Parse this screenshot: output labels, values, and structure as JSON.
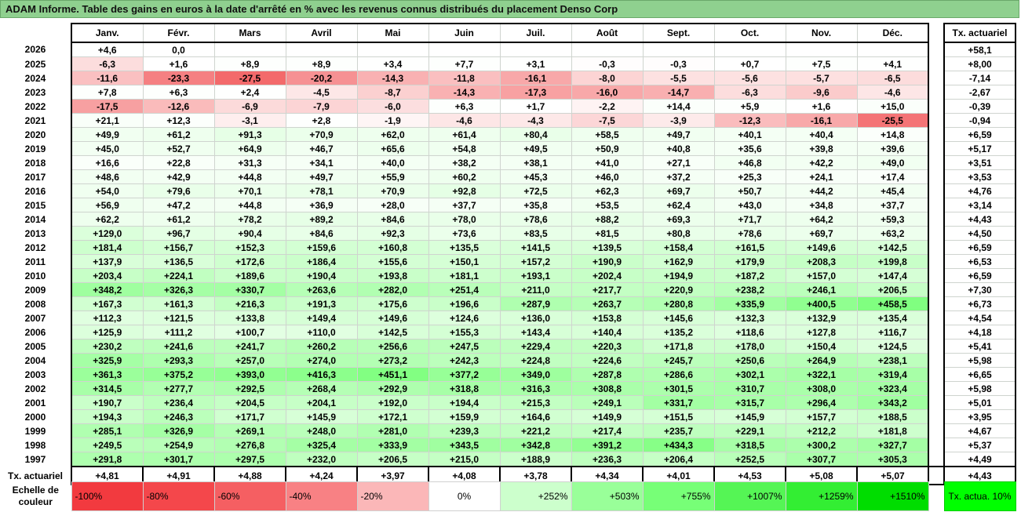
{
  "title": "ADAM Informe. Table des gains en euros à la date d'arrêté en % avec les revenus connus distribués du placement Denso Corp",
  "months": [
    "Janv.",
    "Févr.",
    "Mars",
    "Avril",
    "Mai",
    "Juin",
    "Juil.",
    "Août",
    "Sept.",
    "Oct.",
    "Nov.",
    "Déc."
  ],
  "actuarial_header": "Tx. actuariel",
  "rows": [
    {
      "year": "2026",
      "values": [
        "+4,6",
        "0,0",
        "",
        "",
        "",
        "",
        "",
        "",
        "",
        "",
        "",
        ""
      ],
      "actuarial": "+58,1"
    },
    {
      "year": "2025",
      "values": [
        "-6,3",
        "+1,6",
        "+8,9",
        "+8,9",
        "+3,4",
        "+7,7",
        "+3,1",
        "-0,3",
        "-0,3",
        "+0,7",
        "+7,5",
        "+4,1"
      ],
      "actuarial": "+8,00"
    },
    {
      "year": "2024",
      "values": [
        "-11,6",
        "-23,3",
        "-27,5",
        "-20,2",
        "-14,3",
        "-11,8",
        "-16,1",
        "-8,0",
        "-5,5",
        "-5,6",
        "-5,7",
        "-6,5"
      ],
      "actuarial": "-7,14"
    },
    {
      "year": "2023",
      "values": [
        "+7,8",
        "+6,3",
        "+2,4",
        "-4,5",
        "-8,7",
        "-14,3",
        "-17,3",
        "-16,0",
        "-14,7",
        "-6,3",
        "-9,6",
        "-4,6"
      ],
      "actuarial": "-2,67"
    },
    {
      "year": "2022",
      "values": [
        "-17,5",
        "-12,6",
        "-6,9",
        "-7,9",
        "-6,0",
        "+6,3",
        "+1,7",
        "-2,2",
        "+14,4",
        "+5,9",
        "+1,6",
        "+15,0"
      ],
      "actuarial": "-0,39"
    },
    {
      "year": "2021",
      "values": [
        "+21,1",
        "+12,3",
        "-3,1",
        "+2,8",
        "-1,9",
        "-4,6",
        "-4,3",
        "-7,5",
        "-3,9",
        "-12,3",
        "-16,1",
        "-25,5"
      ],
      "actuarial": "-0,94"
    },
    {
      "year": "2020",
      "values": [
        "+49,9",
        "+61,2",
        "+91,3",
        "+70,9",
        "+62,0",
        "+61,4",
        "+80,4",
        "+58,5",
        "+49,7",
        "+40,1",
        "+40,4",
        "+14,8"
      ],
      "actuarial": "+6,59"
    },
    {
      "year": "2019",
      "values": [
        "+45,0",
        "+52,7",
        "+64,9",
        "+46,7",
        "+65,6",
        "+54,8",
        "+49,5",
        "+50,9",
        "+40,8",
        "+35,6",
        "+39,8",
        "+39,6"
      ],
      "actuarial": "+5,17"
    },
    {
      "year": "2018",
      "values": [
        "+16,6",
        "+22,8",
        "+31,3",
        "+34,1",
        "+40,0",
        "+38,2",
        "+38,1",
        "+41,0",
        "+27,1",
        "+46,8",
        "+42,2",
        "+49,0"
      ],
      "actuarial": "+3,51"
    },
    {
      "year": "2017",
      "values": [
        "+48,6",
        "+42,9",
        "+44,8",
        "+49,7",
        "+55,9",
        "+60,2",
        "+45,3",
        "+46,0",
        "+37,2",
        "+25,3",
        "+24,1",
        "+17,4"
      ],
      "actuarial": "+3,53"
    },
    {
      "year": "2016",
      "values": [
        "+54,0",
        "+79,6",
        "+70,1",
        "+78,1",
        "+70,9",
        "+92,8",
        "+72,5",
        "+62,3",
        "+69,7",
        "+50,7",
        "+44,2",
        "+45,4"
      ],
      "actuarial": "+4,76"
    },
    {
      "year": "2015",
      "values": [
        "+56,9",
        "+47,2",
        "+44,8",
        "+36,9",
        "+28,0",
        "+37,7",
        "+35,8",
        "+53,5",
        "+62,4",
        "+43,0",
        "+34,8",
        "+37,7"
      ],
      "actuarial": "+3,14"
    },
    {
      "year": "2014",
      "values": [
        "+62,2",
        "+61,2",
        "+78,2",
        "+89,2",
        "+84,6",
        "+78,0",
        "+78,6",
        "+88,2",
        "+69,3",
        "+71,7",
        "+64,2",
        "+59,3"
      ],
      "actuarial": "+4,43"
    },
    {
      "year": "2013",
      "values": [
        "+129,0",
        "+96,7",
        "+90,4",
        "+84,6",
        "+92,3",
        "+73,6",
        "+83,5",
        "+81,5",
        "+80,8",
        "+78,6",
        "+69,7",
        "+63,2"
      ],
      "actuarial": "+4,50"
    },
    {
      "year": "2012",
      "values": [
        "+181,4",
        "+156,7",
        "+152,3",
        "+159,6",
        "+160,8",
        "+135,5",
        "+141,5",
        "+139,5",
        "+158,4",
        "+161,5",
        "+149,6",
        "+142,5"
      ],
      "actuarial": "+6,59"
    },
    {
      "year": "2011",
      "values": [
        "+137,9",
        "+136,5",
        "+172,6",
        "+186,4",
        "+155,6",
        "+150,1",
        "+157,2",
        "+190,9",
        "+162,9",
        "+179,9",
        "+208,3",
        "+199,8"
      ],
      "actuarial": "+6,53"
    },
    {
      "year": "2010",
      "values": [
        "+203,4",
        "+224,1",
        "+189,6",
        "+190,4",
        "+193,8",
        "+181,1",
        "+193,1",
        "+202,4",
        "+194,9",
        "+187,2",
        "+157,0",
        "+147,4"
      ],
      "actuarial": "+6,59"
    },
    {
      "year": "2009",
      "values": [
        "+348,2",
        "+326,3",
        "+330,7",
        "+263,6",
        "+282,0",
        "+251,4",
        "+211,0",
        "+217,7",
        "+220,9",
        "+238,2",
        "+246,1",
        "+206,5"
      ],
      "actuarial": "+7,30"
    },
    {
      "year": "2008",
      "values": [
        "+167,3",
        "+161,3",
        "+216,3",
        "+191,3",
        "+175,6",
        "+196,6",
        "+287,9",
        "+263,7",
        "+280,8",
        "+335,9",
        "+400,5",
        "+458,5"
      ],
      "actuarial": "+6,73"
    },
    {
      "year": "2007",
      "values": [
        "+112,3",
        "+121,5",
        "+133,8",
        "+149,4",
        "+149,6",
        "+124,6",
        "+136,0",
        "+153,8",
        "+145,6",
        "+132,3",
        "+132,9",
        "+135,4"
      ],
      "actuarial": "+4,54"
    },
    {
      "year": "2006",
      "values": [
        "+125,9",
        "+111,2",
        "+100,7",
        "+110,0",
        "+142,5",
        "+155,3",
        "+143,4",
        "+140,4",
        "+135,2",
        "+118,6",
        "+127,8",
        "+116,7"
      ],
      "actuarial": "+4,18"
    },
    {
      "year": "2005",
      "values": [
        "+230,2",
        "+241,6",
        "+241,7",
        "+260,2",
        "+256,6",
        "+247,5",
        "+229,4",
        "+220,3",
        "+171,8",
        "+178,0",
        "+150,4",
        "+124,5"
      ],
      "actuarial": "+5,41"
    },
    {
      "year": "2004",
      "values": [
        "+325,9",
        "+293,3",
        "+257,0",
        "+274,0",
        "+273,2",
        "+242,3",
        "+224,8",
        "+224,6",
        "+245,7",
        "+250,6",
        "+264,9",
        "+238,1"
      ],
      "actuarial": "+5,98"
    },
    {
      "year": "2003",
      "values": [
        "+361,3",
        "+375,2",
        "+393,0",
        "+416,3",
        "+451,1",
        "+377,2",
        "+349,0",
        "+287,8",
        "+286,6",
        "+302,1",
        "+322,1",
        "+319,4"
      ],
      "actuarial": "+6,65"
    },
    {
      "year": "2002",
      "values": [
        "+314,5",
        "+277,7",
        "+292,5",
        "+268,4",
        "+292,9",
        "+318,8",
        "+316,3",
        "+308,8",
        "+301,5",
        "+310,7",
        "+308,0",
        "+323,4"
      ],
      "actuarial": "+5,98"
    },
    {
      "year": "2001",
      "values": [
        "+190,7",
        "+236,4",
        "+204,5",
        "+204,1",
        "+192,0",
        "+194,4",
        "+215,3",
        "+249,1",
        "+331,7",
        "+315,7",
        "+296,4",
        "+343,2"
      ],
      "actuarial": "+5,01"
    },
    {
      "year": "2000",
      "values": [
        "+194,3",
        "+246,3",
        "+171,7",
        "+145,9",
        "+172,1",
        "+159,9",
        "+164,6",
        "+149,9",
        "+151,5",
        "+145,9",
        "+157,7",
        "+188,5"
      ],
      "actuarial": "+3,95"
    },
    {
      "year": "1999",
      "values": [
        "+285,1",
        "+326,9",
        "+269,1",
        "+248,0",
        "+281,0",
        "+239,3",
        "+221,2",
        "+217,4",
        "+235,7",
        "+229,1",
        "+212,2",
        "+181,8"
      ],
      "actuarial": "+4,67"
    },
    {
      "year": "1998",
      "values": [
        "+249,5",
        "+254,9",
        "+276,8",
        "+325,4",
        "+333,9",
        "+343,5",
        "+342,8",
        "+391,2",
        "+434,3",
        "+318,5",
        "+300,2",
        "+327,7"
      ],
      "actuarial": "+5,37"
    },
    {
      "year": "1997",
      "values": [
        "+291,8",
        "+301,7",
        "+297,5",
        "+232,0",
        "+206,5",
        "+215,0",
        "+188,9",
        "+236,3",
        "+206,4",
        "+252,5",
        "+307,7",
        "+305,3"
      ],
      "actuarial": "+4,49"
    }
  ],
  "actuarial_row": {
    "label": "Tx. actuariel",
    "values": [
      "+4,81",
      "+4,91",
      "+4,88",
      "+4,24",
      "+3,97",
      "+4,08",
      "+3,78",
      "+4,34",
      "+4,01",
      "+4,53",
      "+5,08",
      "+5,07"
    ],
    "overall": "+4,43"
  },
  "color_scale": {
    "label": "Echelle de couleur",
    "steps": [
      {
        "label": "-100%",
        "color": "#f23a3f"
      },
      {
        "label": "-80%",
        "color": "#f4474b"
      },
      {
        "label": "-60%",
        "color": "#f55f62"
      },
      {
        "label": "-40%",
        "color": "#f88184"
      },
      {
        "label": "-20%",
        "color": "#fbb7b8"
      },
      {
        "label": "0%",
        "color": "#ffffff"
      },
      {
        "label": "+252%",
        "color": "#ccffcc"
      },
      {
        "label": "+503%",
        "color": "#99ff99"
      },
      {
        "label": "+755%",
        "color": "#77ff77"
      },
      {
        "label": "+1007%",
        "color": "#55f555"
      },
      {
        "label": "+1259%",
        "color": "#33ee33"
      },
      {
        "label": "+1510%",
        "color": "#00dd00"
      }
    ],
    "actuarial_legend": "Tx. actua. 10%",
    "actuarial_legend_color": "#00ff00"
  }
}
